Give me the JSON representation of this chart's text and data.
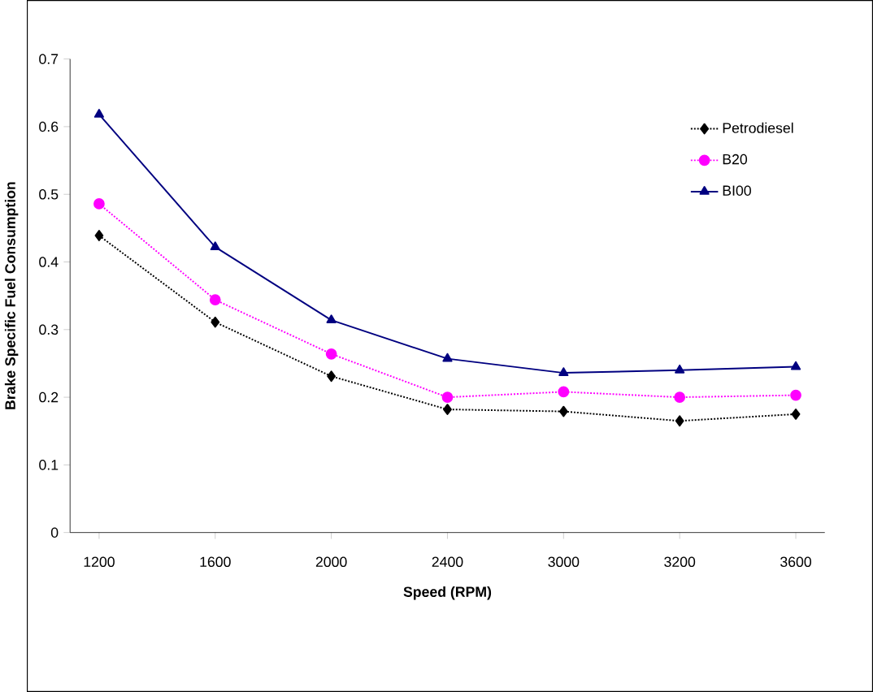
{
  "chart_data": {
    "type": "line",
    "xlabel": "Speed (RPM)",
    "ylabel": "Brake Specific Fuel Consumption",
    "categories": [
      "1200",
      "1600",
      "2000",
      "2400",
      "3000",
      "3200",
      "3600"
    ],
    "ylim": [
      0,
      0.7
    ],
    "yticks": [
      0,
      0.1,
      0.2,
      0.3,
      0.4,
      0.5,
      0.6,
      0.7
    ],
    "legend": "top right",
    "grid": false,
    "series": [
      {
        "name": "Petrodiesel",
        "color": "#000000",
        "marker": "diamond",
        "line_style": "dotted",
        "values": [
          0.439,
          0.311,
          0.231,
          0.182,
          0.179,
          0.165,
          0.175
        ]
      },
      {
        "name": "B20",
        "color": "#ff00ff",
        "marker": "circle",
        "line_style": "dotted",
        "values": [
          0.486,
          0.344,
          0.264,
          0.2,
          0.208,
          0.2,
          0.203
        ]
      },
      {
        "name": "BI00",
        "color": "#000080",
        "marker": "triangle",
        "line_style": "solid",
        "values": [
          0.618,
          0.422,
          0.314,
          0.257,
          0.236,
          0.24,
          0.245
        ]
      }
    ]
  }
}
